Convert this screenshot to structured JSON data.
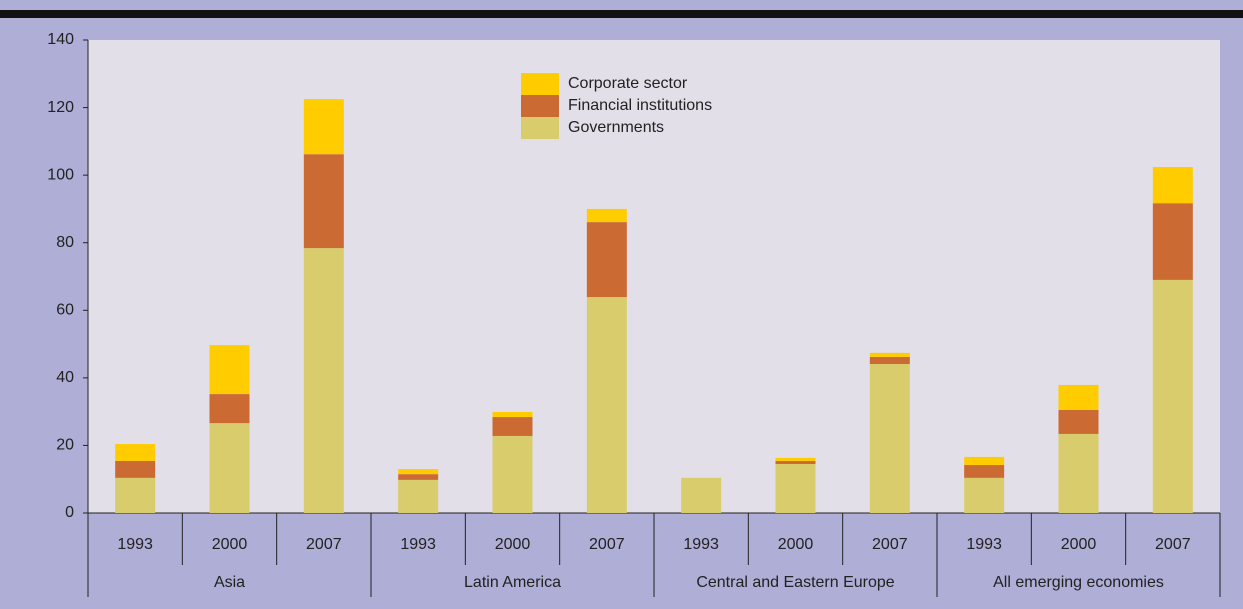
{
  "chart_data": {
    "type": "stacked_bar",
    "categories": [
      "1993",
      "2000",
      "2007",
      "1993",
      "2000",
      "2007",
      "1993",
      "2000",
      "2007",
      "1993",
      "2000",
      "2007"
    ],
    "groups": [
      "Asia",
      "Latin America",
      "Central and Eastern Europe",
      "All emerging economies"
    ],
    "series": [
      {
        "name": "Governments",
        "color": "#d8cc6c",
        "values": [
          10.4,
          26.6,
          78.4,
          9.8,
          22.8,
          63.9,
          10.4,
          14.5,
          44.1,
          10.4,
          23.4,
          69
        ]
      },
      {
        "name": "Financial institutions",
        "color": "#cc6a34",
        "values": [
          5,
          8.6,
          27.8,
          1.7,
          5.6,
          22.2,
          0,
          0.9,
          2.1,
          3.8,
          7.1,
          22.7
        ]
      },
      {
        "name": "Corporate sector",
        "color": "#ffcc00",
        "values": [
          5,
          14.5,
          16.3,
          1.5,
          1.5,
          3.9,
          0,
          0.9,
          1.2,
          2.4,
          7.4,
          10.7
        ]
      }
    ],
    "ylim": [
      0,
      140
    ],
    "yticks": [
      0,
      20,
      40,
      60,
      80,
      100,
      120,
      140
    ]
  }
}
